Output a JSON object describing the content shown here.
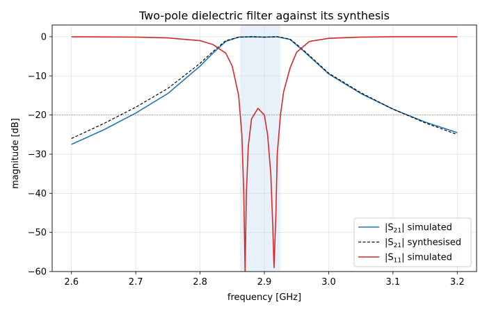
{
  "chart_data": {
    "type": "line",
    "title": "Two-pole dielectric filter against its synthesis",
    "xlabel": "frequency [GHz]",
    "ylabel": "magnitude [dB]",
    "xlim": [
      2.57,
      3.23
    ],
    "ylim": [
      -60,
      3
    ],
    "xticks": [
      "2.6",
      "2.7",
      "2.8",
      "2.9",
      "3.0",
      "3.1",
      "3.2"
    ],
    "yticks": [
      "0",
      "−10",
      "−20",
      "−30",
      "−40",
      "−50",
      "−60"
    ],
    "grid": true,
    "legend_position": "lower-right",
    "passband_shading": {
      "x_start": 2.862,
      "x_end": 2.925,
      "color": "#e8f1fa"
    },
    "reference_line": {
      "y": -20,
      "style": "dotted",
      "color": "#888888"
    },
    "series": [
      {
        "name": "|S21| simulated",
        "legend_main": "|S",
        "legend_sub": "21",
        "legend_rest": "| simulated",
        "color": "#1f77b4",
        "style": "solid",
        "x": [
          2.6,
          2.65,
          2.7,
          2.75,
          2.8,
          2.82,
          2.84,
          2.86,
          2.88,
          2.9,
          2.92,
          2.94,
          2.96,
          2.98,
          3.0,
          3.05,
          3.1,
          3.15,
          3.2
        ],
        "y": [
          -27.5,
          -23.8,
          -19.5,
          -14.5,
          -7.5,
          -4.2,
          -1.2,
          -0.1,
          0,
          -0.1,
          0,
          -0.7,
          -3.5,
          -6.5,
          -9.5,
          -14.5,
          -18.5,
          -21.8,
          -24.5
        ]
      },
      {
        "name": "|S21| synthesised",
        "legend_main": "|S",
        "legend_sub": "21",
        "legend_rest": "| synthesised",
        "color": "#000000",
        "style": "dashed",
        "x": [
          2.6,
          2.65,
          2.7,
          2.75,
          2.8,
          2.82,
          2.84,
          2.86,
          2.88,
          2.9,
          2.92,
          2.94,
          2.96,
          2.98,
          3.0,
          3.05,
          3.1,
          3.15,
          3.2
        ],
        "y": [
          -26,
          -22.2,
          -18,
          -13.2,
          -6.8,
          -3.8,
          -1.0,
          -0.1,
          0,
          -0.1,
          0,
          -0.6,
          -3.3,
          -6.3,
          -9.3,
          -14.3,
          -18.5,
          -22,
          -25
        ]
      },
      {
        "name": "|S11| simulated",
        "legend_main": "|S",
        "legend_sub": "11",
        "legend_rest": "| simulated",
        "color": "#d62728",
        "style": "solid",
        "x": [
          2.6,
          2.7,
          2.75,
          2.8,
          2.82,
          2.84,
          2.85,
          2.86,
          2.865,
          2.868,
          2.87,
          2.872,
          2.875,
          2.88,
          2.89,
          2.9,
          2.905,
          2.91,
          2.913,
          2.915,
          2.918,
          2.92,
          2.925,
          2.93,
          2.94,
          2.95,
          2.97,
          3.0,
          3.05,
          3.1,
          3.2
        ],
        "y": [
          0,
          -0.1,
          -0.3,
          -1.0,
          -2.0,
          -4.2,
          -7.5,
          -15,
          -25,
          -40,
          -60,
          -40,
          -28,
          -21,
          -18.3,
          -20,
          -25,
          -35,
          -48,
          -59,
          -45,
          -30,
          -20,
          -14,
          -8,
          -4,
          -1.2,
          -0.4,
          -0.1,
          0,
          0
        ]
      }
    ]
  }
}
